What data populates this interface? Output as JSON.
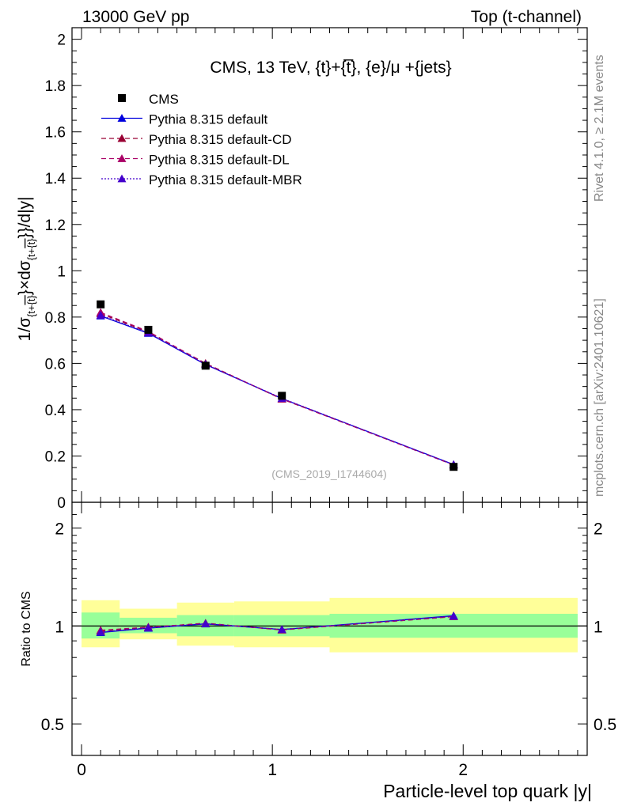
{
  "header": {
    "left": "13000 GeV pp",
    "right": "Top (t-channel)"
  },
  "side_labels": {
    "rivet": "Rivet 4.1.0, ≥ 2.1M events",
    "mcplots": "mcplots.cern.ch [arXiv:2401.10621]"
  },
  "chart_data": {
    "type": "line",
    "title": "CMS, 13 TeV, {t}+{t̅}, {e}/μ +{jets}",
    "xlabel": "Particle-level top quark |y|",
    "ylabel": "1/σ{t+{t̅}}×dσ{t+{t̅}}/d|y|",
    "ylabel_parts": {
      "p1": "1/σ",
      "s1": "{t+",
      "o1": "{t}",
      "p2": "}×dσ",
      "s2": "{t+",
      "o2": "{t}",
      "p3": "}}/d|y|"
    },
    "ratio_ylabel": "Ratio to CMS",
    "watermark": "(CMS_2019_I1744604)",
    "xlim": [
      -0.05,
      2.65
    ],
    "ylim": [
      0,
      2.05
    ],
    "ratio_ylim": [
      0.4,
      2.4
    ],
    "x_ticks": [
      0,
      1,
      2
    ],
    "x_tick_labels": [
      "0",
      "1",
      "2"
    ],
    "y_ticks": [
      0,
      0.2,
      0.4,
      0.6,
      0.8,
      1,
      1.2,
      1.4,
      1.6,
      1.8,
      2
    ],
    "y_tick_labels": [
      "0",
      "0.2",
      "0.4",
      "0.6",
      "0.8",
      "1",
      "1.2",
      "1.4",
      "1.6",
      "1.8",
      "2"
    ],
    "ratio_ticks": [
      0.5,
      1,
      2
    ],
    "ratio_tick_labels": [
      "0.5",
      "1",
      "2"
    ],
    "bins": [
      [
        0,
        0.2
      ],
      [
        0.2,
        0.5
      ],
      [
        0.5,
        0.8
      ],
      [
        0.8,
        1.3
      ],
      [
        1.3,
        2.6
      ]
    ],
    "x": [
      0.1,
      0.35,
      0.65,
      1.05,
      1.95
    ],
    "data": {
      "name": "CMS",
      "values": [
        0.855,
        0.745,
        0.59,
        0.46,
        0.153
      ],
      "band_inner": [
        [
          0.915,
          1.1
        ],
        [
          0.95,
          1.06
        ],
        [
          0.93,
          1.08
        ],
        [
          0.93,
          1.08
        ],
        [
          0.92,
          1.09
        ]
      ],
      "band_outer": [
        [
          0.86,
          1.2
        ],
        [
          0.91,
          1.13
        ],
        [
          0.87,
          1.18
        ],
        [
          0.86,
          1.19
        ],
        [
          0.83,
          1.22
        ]
      ]
    },
    "series": [
      {
        "name": "Pythia 8.315 default",
        "color": "#0000dd",
        "style": "solid",
        "values": [
          0.805,
          0.73,
          0.595,
          0.448,
          0.163
        ],
        "ratio": [
          0.955,
          0.985,
          1.015,
          0.975,
          1.075
        ]
      },
      {
        "name": "Pythia 8.315 default-CD",
        "color": "#990033",
        "style": "dashed",
        "values": [
          0.815,
          0.735,
          0.6,
          0.446,
          0.162
        ],
        "ratio": [
          0.965,
          0.99,
          1.02,
          0.972,
          1.07
        ]
      },
      {
        "name": "Pythia 8.315 default-DL",
        "color": "#aa0066",
        "style": "dashed",
        "values": [
          0.82,
          0.738,
          0.598,
          0.447,
          0.161
        ],
        "ratio": [
          0.97,
          0.992,
          1.018,
          0.974,
          1.068
        ]
      },
      {
        "name": "Pythia 8.315 default-MBR",
        "color": "#4400cc",
        "style": "dotted",
        "values": [
          0.808,
          0.732,
          0.596,
          0.449,
          0.162
        ],
        "ratio": [
          0.958,
          0.987,
          1.016,
          0.976,
          1.072
        ]
      }
    ],
    "colors": {
      "band_inner": "#99ff99",
      "band_outer": "#ffff99",
      "data_marker": "#000000"
    }
  }
}
